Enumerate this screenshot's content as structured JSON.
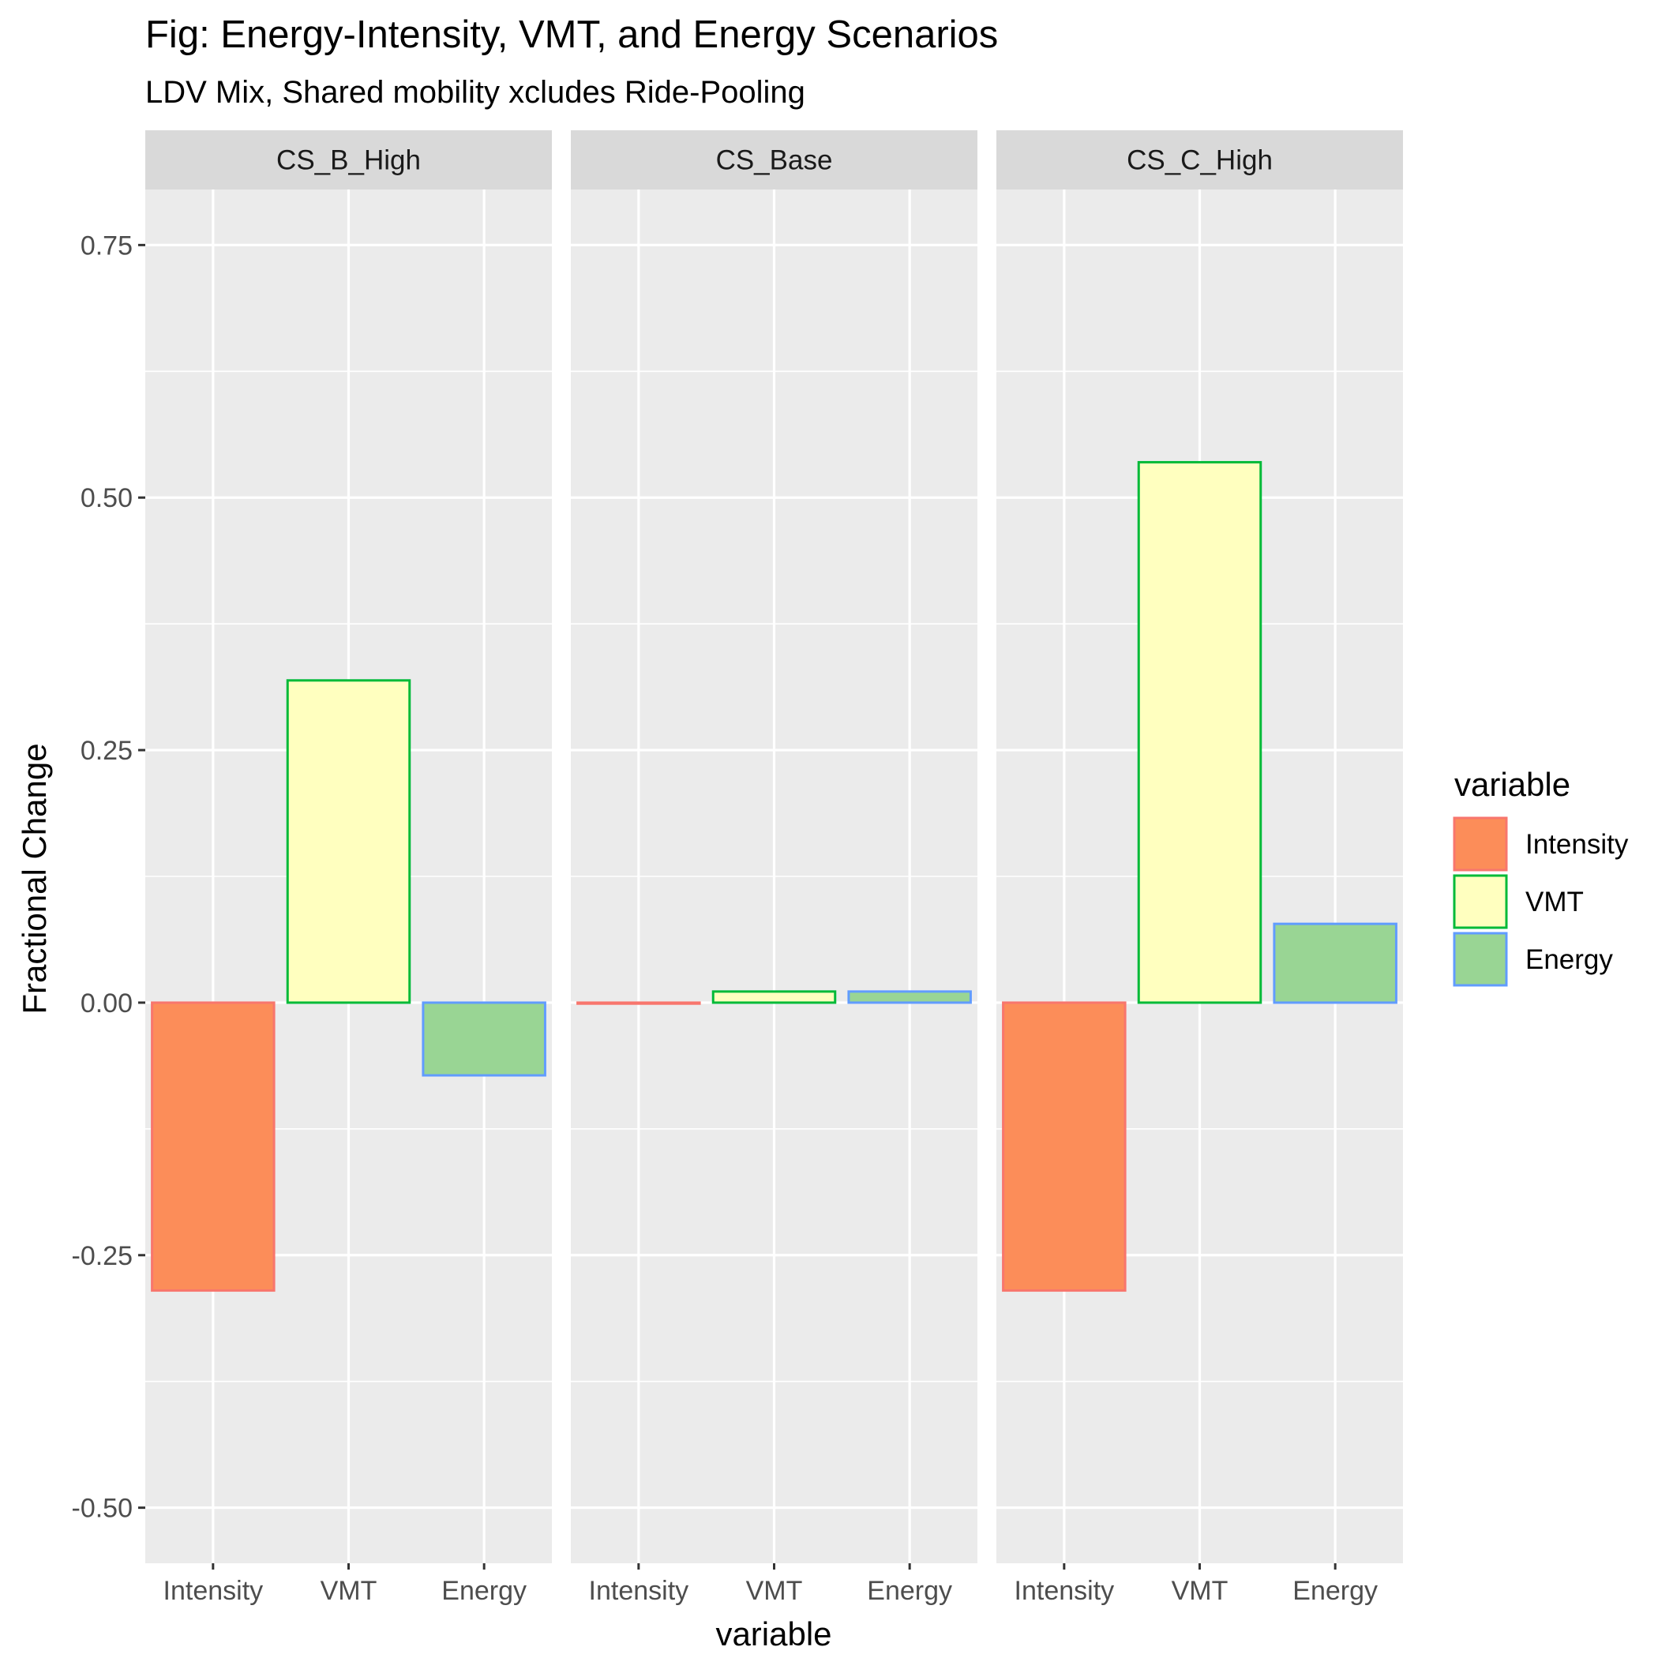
{
  "chart_data": {
    "type": "bar",
    "title": "Fig: Energy-Intensity, VMT, and Energy Scenarios",
    "subtitle": "LDV Mix, Shared mobility xcludes Ride-Pooling",
    "xlabel": "variable",
    "ylabel": "Fractional Change",
    "ylim": [
      -0.555,
      0.805
    ],
    "yticks": [
      -0.5,
      -0.25,
      0.0,
      0.25,
      0.5,
      0.75
    ],
    "ytick_labels": [
      "-0.50",
      "-0.25",
      "0.00",
      "0.25",
      "0.50",
      "0.75"
    ],
    "categories": [
      "Intensity",
      "VMT",
      "Energy"
    ],
    "panels": [
      {
        "name": "CS_B_High",
        "values": [
          -0.285,
          0.319,
          -0.072
        ]
      },
      {
        "name": "CS_Base",
        "values": [
          -0.001,
          0.011,
          0.011
        ]
      },
      {
        "name": "CS_C_High",
        "values": [
          -0.285,
          0.535,
          0.078
        ]
      }
    ],
    "legend": {
      "title": "variable",
      "placement": "right",
      "entries": [
        {
          "label": "Intensity",
          "fill": "#FC8D59",
          "stroke": "#F8766D"
        },
        {
          "label": "VMT",
          "fill": "#FFFFBF",
          "stroke": "#00BA38"
        },
        {
          "label": "Energy",
          "fill": "#99D594",
          "stroke": "#619CFF"
        }
      ]
    },
    "grid": true,
    "panel_background": "#EBEBEB",
    "strip_background": "#D9D9D9"
  }
}
